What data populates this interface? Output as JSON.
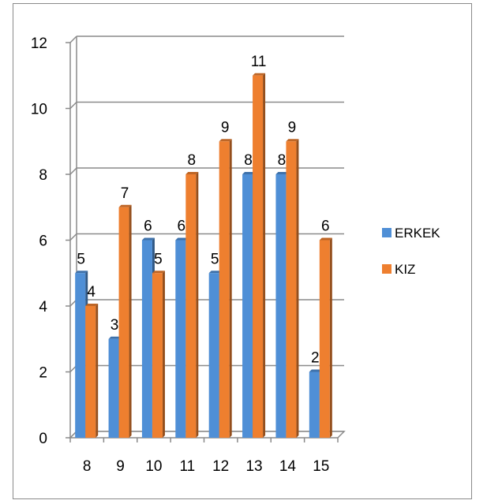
{
  "chart_data": {
    "type": "bar",
    "categories": [
      "8",
      "9",
      "10",
      "11",
      "12",
      "13",
      "14",
      "15"
    ],
    "series": [
      {
        "name": "ERKEK",
        "values": [
          5,
          3,
          6,
          6,
          5,
          8,
          8,
          2
        ],
        "color": "#4f8fd6"
      },
      {
        "name": "KIZ",
        "values": [
          4,
          7,
          5,
          8,
          9,
          11,
          9,
          6
        ],
        "color": "#ee7f2f"
      }
    ],
    "title": "",
    "xlabel": "",
    "ylabel": "",
    "ylim": [
      0,
      12
    ],
    "yticks": [
      "0",
      "2",
      "4",
      "6",
      "8",
      "10",
      "12"
    ],
    "grid": true,
    "style": "3d-bar",
    "legend": {
      "placement": "right",
      "entries": [
        "ERKEK",
        "KIZ"
      ]
    }
  }
}
